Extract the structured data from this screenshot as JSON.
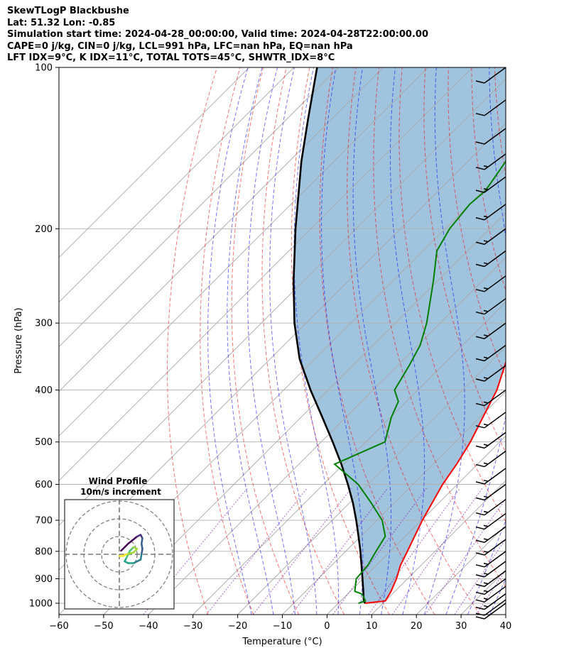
{
  "header": {
    "line1": "SkewTLogP Blackbushe",
    "line2": "Lat: 51.32   Lon: -0.85",
    "line3": "Simulation start time: 2024-04-28_00:00:00, Valid time: 2024-04-28T22:00:00.00",
    "line4": "CAPE=0 j/kg, CIN=0 j/kg, LCL=991 hPa, LFC=nan hPa, EQ=nan hPa",
    "line5": "LFT IDX=9°C, K IDX=11°C, TOTAL TOTS=45°C, SHWTR_IDX=8°C"
  },
  "colors": {
    "temperature": "#ff0000",
    "dewpoint": "#008000",
    "parcel": "#000000",
    "fill": "#a0c4de",
    "dry_adiabat": "#ff0000",
    "moist_adiabat": "#0000ff",
    "mixing_ratio": "#7b00b4"
  },
  "chart_data": {
    "type": "line",
    "title": "",
    "xlabel": "Temperature (°C)",
    "ylabel": "Pressure (hPa)",
    "xlim": [
      -60,
      40
    ],
    "ylim": [
      1050,
      100
    ],
    "y_scale": "log",
    "skew": "45 degree skew-T",
    "grid": true,
    "xticks": [
      -60,
      -50,
      -40,
      -30,
      -20,
      -10,
      0,
      10,
      20,
      30,
      40
    ],
    "xtick_labels": [
      "−60",
      "−50",
      "−40",
      "−30",
      "−20",
      "−10",
      "0",
      "10",
      "20",
      "30",
      "40"
    ],
    "yticks": [
      1000,
      900,
      800,
      700,
      600,
      500,
      400,
      300,
      200,
      100
    ],
    "series": [
      {
        "role": "temperature",
        "p": [
          1000,
          990,
          950,
          900,
          850,
          800,
          700,
          600,
          550,
          500,
          450,
          400,
          350,
          300,
          280,
          270,
          255,
          240,
          220,
          200,
          180,
          160,
          150,
          140,
          130,
          120,
          110,
          100
        ],
        "t": [
          6.0,
          10.0,
          9.1,
          7.5,
          5.4,
          3.8,
          0.2,
          -3.3,
          -4.7,
          -6.6,
          -9.3,
          -12.3,
          -17.0,
          -23.3,
          -27.1,
          -28.1,
          -29.3,
          -31.3,
          -35.8,
          -39.9,
          -44.0,
          -46.0,
          -47.5,
          -50.0,
          -52.5,
          -55.5,
          -57.5,
          -61.0
        ]
      },
      {
        "role": "dewpoint",
        "p": [
          1000,
          990,
          970,
          960,
          950,
          900,
          850,
          800,
          750,
          700,
          650,
          600,
          550,
          500,
          450,
          420,
          400,
          360,
          330,
          300,
          250,
          220,
          200,
          180,
          170,
          150,
          130,
          120,
          100
        ],
        "t": [
          4.5,
          5.5,
          4.0,
          3.0,
          1.0,
          -1.5,
          -1.9,
          -3.2,
          -4.5,
          -8.8,
          -15.1,
          -22.2,
          -32.0,
          -25.7,
          -29.8,
          -31.8,
          -35.2,
          -37.4,
          -39.5,
          -43.0,
          -51.0,
          -56.9,
          -59.0,
          -60.0,
          -59.5,
          -61.5,
          -65.5,
          -67.5,
          -72.0
        ]
      },
      {
        "role": "parcel",
        "p": [
          1000,
          991,
          950,
          900,
          850,
          800,
          750,
          700,
          650,
          600,
          550,
          500,
          450,
          400,
          350,
          300,
          250,
          200,
          150,
          125,
          100
        ],
        "t": [
          6.0,
          5.2,
          2.9,
          -0.1,
          -3.3,
          -6.7,
          -10.5,
          -14.6,
          -19.2,
          -24.5,
          -30.5,
          -37.4,
          -45.2,
          -54.0,
          -63.4,
          -72.6,
          -82.3,
          -93.5,
          -107.2,
          -115.2,
          -124.8
        ]
      }
    ],
    "wind_barbs": {
      "p": [
        1000,
        985,
        960,
        930,
        900,
        870,
        835,
        800,
        760,
        720,
        680,
        640,
        600,
        560,
        520,
        480,
        440,
        400,
        360,
        330,
        300,
        270,
        245,
        220,
        200,
        180,
        160,
        145,
        130,
        115,
        100
      ],
      "speed_kt": [
        10,
        12,
        15,
        15,
        15,
        15,
        15,
        15,
        15,
        15,
        15,
        15,
        15,
        15,
        15,
        15,
        15,
        15,
        15,
        15,
        15,
        15,
        15,
        15,
        15,
        15,
        15,
        15,
        10,
        10,
        10
      ]
    },
    "wind_profile_inset": {
      "title": "Wind Profile",
      "subtitle": "10m/s increment",
      "rings_ms": [
        10,
        20,
        30
      ],
      "hodograph_u": [
        1,
        2,
        5,
        10,
        12,
        13,
        12.5,
        13,
        12.5,
        12,
        8,
        5,
        3,
        4,
        6,
        8,
        10,
        8,
        4,
        2,
        0
      ],
      "hodograph_v": [
        2,
        3,
        6,
        10,
        11,
        9,
        6,
        3,
        0,
        -3,
        -5,
        -5,
        -4,
        -2,
        2,
        4,
        3,
        1,
        0,
        -1,
        -1
      ]
    }
  }
}
